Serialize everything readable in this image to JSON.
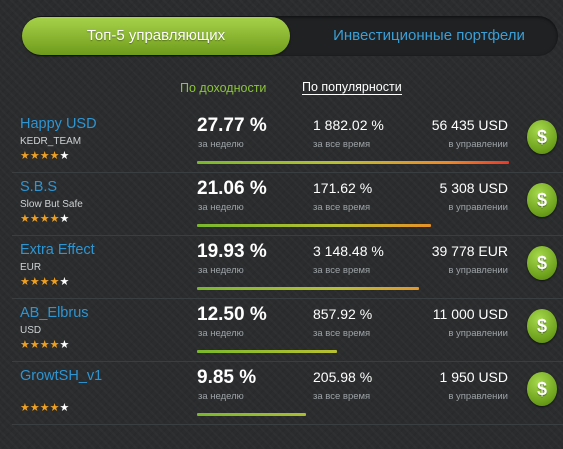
{
  "tabs": {
    "active": "Топ-5 управляющих",
    "inactive": "Инвестиционные портфели"
  },
  "sort": {
    "profit": "По доходности",
    "popularity": "По популярности"
  },
  "labels": {
    "weekly": "за неделю",
    "alltime": "за все время",
    "aum": "в управлении",
    "buy": "$"
  },
  "colors": {
    "accent_green": "#8cc43a",
    "link_blue": "#2e95d3",
    "star": "#f0a020"
  },
  "managers": [
    {
      "name": "Happy USD",
      "sub": "KEDR_TEAM",
      "stars": 4,
      "weekly": "27.77 %",
      "alltime": "1 882.02 %",
      "aum": "56 435 USD",
      "popularity": 1.0
    },
    {
      "name": "S.B.S",
      "sub": "Slow But Safe",
      "stars": 4,
      "weekly": "21.06 %",
      "alltime": "171.62 %",
      "aum": "5 308 USD",
      "popularity": 0.75
    },
    {
      "name": "Extra Effect",
      "sub": "EUR",
      "stars": 4,
      "weekly": "19.93 %",
      "alltime": "3 148.48 %",
      "aum": "39 778 EUR",
      "popularity": 0.71
    },
    {
      "name": "AB_Elbrus",
      "sub": "USD",
      "stars": 4,
      "weekly": "12.50 %",
      "alltime": "857.92 %",
      "aum": "11 000 USD",
      "popularity": 0.45
    },
    {
      "name": "GrowtSH_v1",
      "sub": "",
      "stars": 4,
      "weekly": "9.85 %",
      "alltime": "205.98 %",
      "aum": "1 950 USD",
      "popularity": 0.35
    }
  ]
}
